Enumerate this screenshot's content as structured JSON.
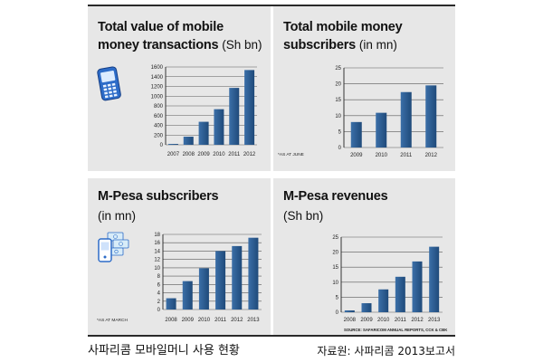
{
  "chart_data": [
    {
      "type": "bar",
      "title_lines": [
        "Total value of mobile",
        "money transactions"
      ],
      "unit": "(Sh bn)",
      "categories": [
        "2007",
        "2008",
        "2009",
        "2010",
        "2011",
        "2012"
      ],
      "values": [
        18,
        167,
        473,
        732,
        1170,
        1537
      ],
      "yticks": [
        0,
        200,
        400,
        600,
        800,
        1000,
        1200,
        1400,
        1600
      ],
      "ylim": [
        0,
        1600
      ],
      "grid": true
    },
    {
      "type": "bar",
      "title_lines": [
        "Total mobile money",
        "subscribers"
      ],
      "unit": "(in mn)",
      "categories": [
        "2009",
        "2010",
        "2011",
        "2012"
      ],
      "values": [
        8,
        10.9,
        17.4,
        19.5
      ],
      "yticks": [
        0,
        5,
        10,
        15,
        20,
        25
      ],
      "ylim": [
        0,
        25
      ],
      "grid": true,
      "note": "*AS AT JUNE"
    },
    {
      "type": "bar",
      "title_lines": [
        "M-Pesa subscribers"
      ],
      "unit": "(in mn)",
      "categories": [
        "2008",
        "2009",
        "2010",
        "2011",
        "2012",
        "2013"
      ],
      "values": [
        2.7,
        6.8,
        9.9,
        14,
        15.2,
        17.2
      ],
      "yticks": [
        0,
        2,
        4,
        6,
        8,
        10,
        12,
        14,
        16,
        18
      ],
      "ylim": [
        0,
        18
      ],
      "grid": true,
      "note": "*AS AT MARCH"
    },
    {
      "type": "bar",
      "title_lines": [
        "M-Pesa revenues"
      ],
      "unit": "(Sh bn)",
      "categories": [
        "2008",
        "2009",
        "2010",
        "2011",
        "2012",
        "2013"
      ],
      "values": [
        0.6,
        3,
        7.6,
        11.8,
        16.9,
        21.8
      ],
      "yticks": [
        0,
        5,
        10,
        15,
        20,
        25
      ],
      "ylim": [
        0,
        25
      ],
      "grid": true,
      "source": "SOURCE: SAFARICOM ANNUAL REPORTS, CCK & CBK"
    }
  ],
  "caption": {
    "title": "사파리콤 모바일머니 사용 현황",
    "source": "자료원: 사파리콤 2013보고서"
  },
  "colors": {
    "bar_light": "#3b6fa8",
    "bar_dark": "#1f4a7a",
    "panel": "#e7e7e7",
    "icon": "#2d6cc8"
  },
  "icons": {
    "transactions_chart": "mobile-phone-icon",
    "mpesa_subscribers_chart": "phone-money-icon"
  }
}
